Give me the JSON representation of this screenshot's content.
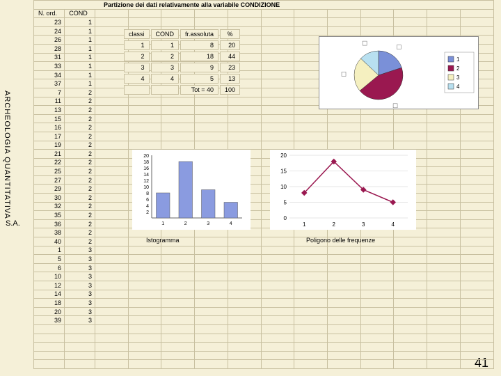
{
  "title": "Partizione dei dati relativamente alla variabile CONDIZIONE",
  "vertical_label": "ARCHEOLOGIA QUANTITATIVA",
  "sa_label": "S.A.",
  "page_number": "41",
  "headers": {
    "nord": "N. ord.",
    "cond": "COND"
  },
  "rows": [
    {
      "n": "23",
      "c": "1"
    },
    {
      "n": "24",
      "c": "1"
    },
    {
      "n": "26",
      "c": "1"
    },
    {
      "n": "28",
      "c": "1"
    },
    {
      "n": "31",
      "c": "1"
    },
    {
      "n": "33",
      "c": "1"
    },
    {
      "n": "34",
      "c": "1"
    },
    {
      "n": "37",
      "c": "1"
    },
    {
      "n": "7",
      "c": "2"
    },
    {
      "n": "11",
      "c": "2"
    },
    {
      "n": "13",
      "c": "2"
    },
    {
      "n": "15",
      "c": "2"
    },
    {
      "n": "16",
      "c": "2"
    },
    {
      "n": "17",
      "c": "2"
    },
    {
      "n": "19",
      "c": "2"
    },
    {
      "n": "21",
      "c": "2"
    },
    {
      "n": "22",
      "c": "2"
    },
    {
      "n": "25",
      "c": "2"
    },
    {
      "n": "27",
      "c": "2"
    },
    {
      "n": "29",
      "c": "2"
    },
    {
      "n": "30",
      "c": "2"
    },
    {
      "n": "32",
      "c": "2"
    },
    {
      "n": "35",
      "c": "2"
    },
    {
      "n": "36",
      "c": "2"
    },
    {
      "n": "38",
      "c": "2"
    },
    {
      "n": "40",
      "c": "2"
    },
    {
      "n": "1",
      "c": "3"
    },
    {
      "n": "5",
      "c": "3"
    },
    {
      "n": "6",
      "c": "3"
    },
    {
      "n": "10",
      "c": "3"
    },
    {
      "n": "12",
      "c": "3"
    },
    {
      "n": "14",
      "c": "3"
    },
    {
      "n": "18",
      "c": "3"
    },
    {
      "n": "20",
      "c": "3"
    },
    {
      "n": "39",
      "c": "3"
    }
  ],
  "freq": {
    "headers": {
      "classi": "classi",
      "cond": "COND",
      "abs": "fr.assoluta",
      "pct": "%"
    },
    "rows": [
      {
        "cl": "1",
        "co": "1",
        "a": "8",
        "p": "20"
      },
      {
        "cl": "2",
        "co": "2",
        "a": "18",
        "p": "44"
      },
      {
        "cl": "3",
        "co": "3",
        "a": "9",
        "p": "23"
      },
      {
        "cl": "4",
        "co": "4",
        "a": "5",
        "p": "13"
      }
    ],
    "total_label": "Tot = 40",
    "total_pct": "100"
  },
  "bar": {
    "label": "Istogramma",
    "ymax": 20,
    "yticks": [
      20,
      18,
      16,
      14,
      12,
      10,
      8,
      6,
      4,
      2
    ],
    "categories": [
      "1",
      "2",
      "3",
      "4"
    ],
    "values": [
      8,
      18,
      9,
      5
    ],
    "bar_color": "#8a9be0",
    "bg": "#ffffff",
    "axis": "#666666"
  },
  "line": {
    "label": "Poligono delle frequenze",
    "ymax": 20,
    "yticks": [
      20,
      15,
      10,
      5,
      0
    ],
    "categories": [
      "1",
      "2",
      "3",
      "4"
    ],
    "values": [
      8,
      18,
      9,
      5
    ],
    "line_color": "#9a1850",
    "marker_color": "#9a1850",
    "bg": "#ffffff",
    "grid": "#cccccc"
  },
  "pie": {
    "slices": [
      {
        "label": "1",
        "value": 20,
        "color": "#7a90d8"
      },
      {
        "label": "2",
        "value": 44,
        "color": "#9a1850"
      },
      {
        "label": "3",
        "value": 23,
        "color": "#f5f0c0"
      },
      {
        "label": "4",
        "value": 13,
        "color": "#b8e0f0"
      }
    ],
    "legend_items": [
      "1",
      "2",
      "3",
      "4"
    ]
  }
}
